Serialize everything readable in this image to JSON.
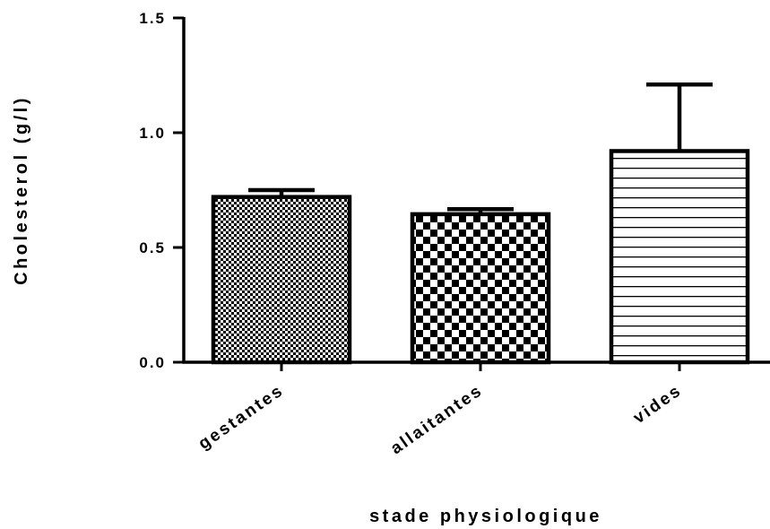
{
  "chart_data": {
    "type": "bar",
    "title": "",
    "xlabel": "stade physiologique",
    "ylabel": "Cholesterol (g/l)",
    "ylim": [
      0,
      1.5
    ],
    "yticks": [
      "0.0",
      "0.5",
      "1.0",
      "1.5"
    ],
    "ytick_values": [
      0,
      0.5,
      1.0,
      1.5
    ],
    "categories": [
      "gestantes",
      "allaitantes",
      "vides"
    ],
    "values": [
      0.72,
      0.645,
      0.92
    ],
    "errors": [
      0.03,
      0.022,
      0.29
    ],
    "patterns": [
      "fine-checker",
      "coarse-checker",
      "horizontal-lines"
    ],
    "colors": {
      "bar_stroke": "#000000",
      "pattern_ink": "#000000",
      "background": "#ffffff"
    },
    "grid": false,
    "legend": "none"
  }
}
